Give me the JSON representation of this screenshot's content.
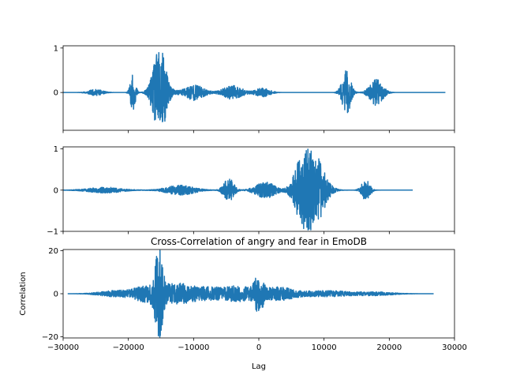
{
  "chart_data": [
    {
      "type": "line",
      "title": "",
      "xlabel": "",
      "ylabel": "",
      "xlim": [
        0,
        30000
      ],
      "ylim": [
        -0.85,
        1.05
      ],
      "yticks": [
        1,
        0
      ],
      "xticks": [
        0,
        5000,
        10000,
        15000,
        20000,
        25000,
        30000
      ],
      "x_tick_labels_shown": false,
      "color": "#1f77b4",
      "signal_extent": [
        0,
        29300
      ],
      "bursts": [
        {
          "center": 2500,
          "width": 500,
          "amplitude": 0.07
        },
        {
          "center": 5350,
          "width": 180,
          "amplitude": 0.4
        },
        {
          "center": 7400,
          "width": 450,
          "amplitude": 1.0
        },
        {
          "center": 10000,
          "width": 700,
          "amplitude": 0.18
        },
        {
          "center": 13000,
          "width": 650,
          "amplitude": 0.16
        },
        {
          "center": 15300,
          "width": 500,
          "amplitude": 0.1
        },
        {
          "center": 21700,
          "width": 300,
          "amplitude": 0.52
        },
        {
          "center": 24000,
          "width": 450,
          "amplitude": 0.3
        }
      ]
    },
    {
      "type": "line",
      "title": "",
      "xlabel": "",
      "ylabel": "",
      "xlim": [
        0,
        30000
      ],
      "ylim": [
        -1.0,
        1.05
      ],
      "yticks": [
        1,
        0,
        -1
      ],
      "xticks": [
        0,
        5000,
        10000,
        15000,
        20000,
        25000,
        30000
      ],
      "x_tick_labels_shown": false,
      "color": "#1f77b4",
      "signal_extent": [
        0,
        26800
      ],
      "bursts": [
        {
          "center": 3200,
          "width": 1200,
          "amplitude": 0.07
        },
        {
          "center": 9000,
          "width": 1000,
          "amplitude": 0.12
        },
        {
          "center": 12700,
          "width": 350,
          "amplitude": 0.3
        },
        {
          "center": 15500,
          "width": 700,
          "amplitude": 0.2
        },
        {
          "center": 18200,
          "width": 500,
          "amplitude": 0.52
        },
        {
          "center": 19200,
          "width": 700,
          "amplitude": 0.9
        },
        {
          "center": 23200,
          "width": 300,
          "amplitude": 0.25
        }
      ]
    },
    {
      "type": "line",
      "title": "Cross-Correlation of angry and fear in EmoDB",
      "xlabel": "Lag",
      "ylabel": "Correlation",
      "xlim": [
        -30000,
        30000
      ],
      "ylim": [
        -20.5,
        20.5
      ],
      "yticks": [
        20,
        0,
        -20
      ],
      "xticks": [
        -30000,
        -20000,
        -10000,
        0,
        10000,
        20000,
        30000
      ],
      "x_tick_labels": [
        "−30000",
        "−20000",
        "−10000",
        "0",
        "10000",
        "20000",
        "30000"
      ],
      "x_tick_labels_shown": true,
      "color": "#1f77b4",
      "signal_extent": [
        -29300,
        26800
      ],
      "bursts": [
        {
          "center": -22000,
          "width": 2200,
          "amplitude": 1.5
        },
        {
          "center": -17000,
          "width": 1800,
          "amplitude": 4.0
        },
        {
          "center": -15300,
          "width": 500,
          "amplitude": 18.5
        },
        {
          "center": -12500,
          "width": 1800,
          "amplitude": 4.5
        },
        {
          "center": -8000,
          "width": 2200,
          "amplitude": 3.0
        },
        {
          "center": -3000,
          "width": 2000,
          "amplitude": 3.5
        },
        {
          "center": 0,
          "width": 600,
          "amplitude": 7.0
        },
        {
          "center": 3000,
          "width": 2000,
          "amplitude": 3.0
        },
        {
          "center": 10000,
          "width": 3500,
          "amplitude": 1.5
        },
        {
          "center": 18000,
          "width": 2500,
          "amplitude": 0.8
        }
      ]
    }
  ]
}
